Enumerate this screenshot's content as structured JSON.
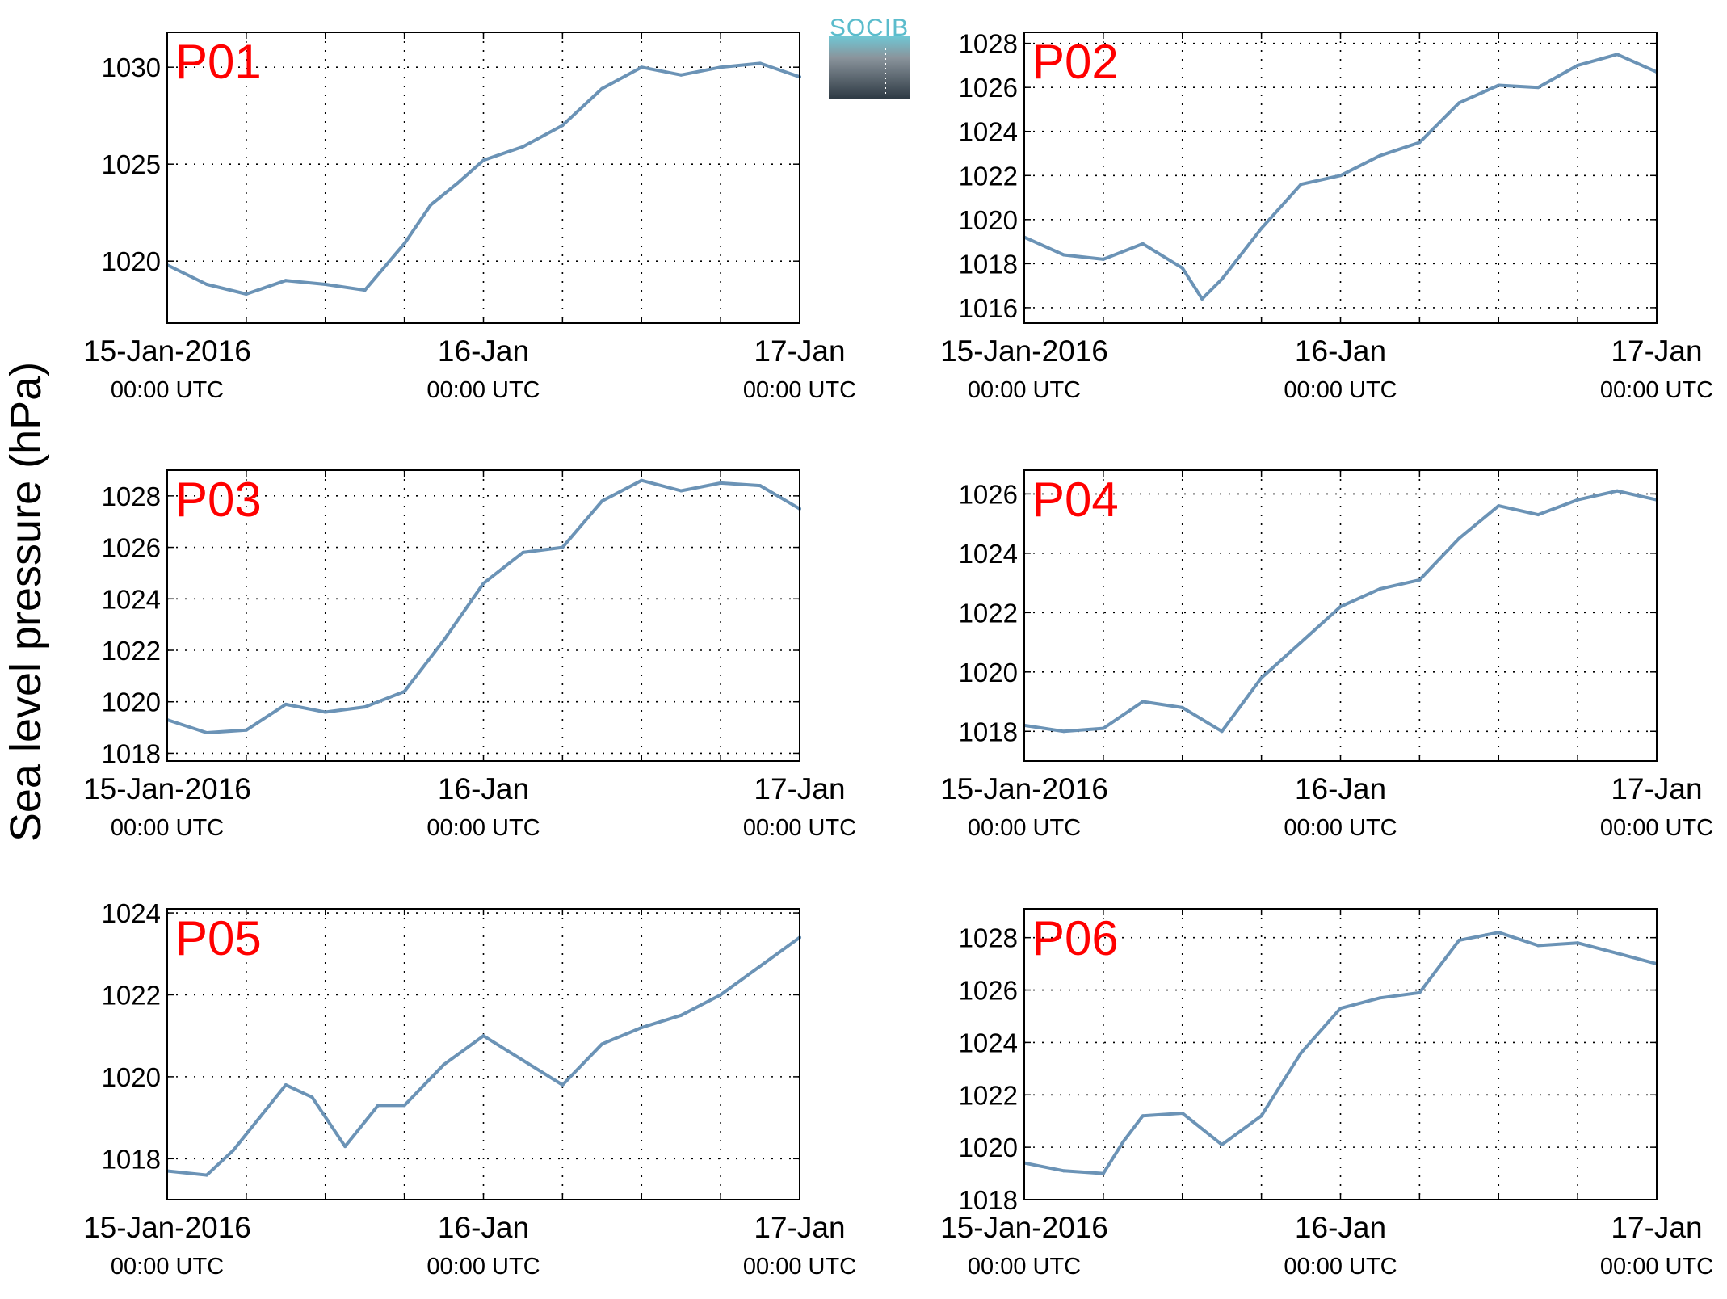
{
  "logo": {
    "text": "SOCIB"
  },
  "colors": {
    "line": "#6b93b6",
    "panel_label": "#ff0000",
    "grid": "#000000"
  },
  "chart_data": [
    {
      "type": "line",
      "title": "P01",
      "ylabel": "Sea level pressure (hPa)",
      "x_ticks": [
        {
          "line1": "15-Jan-2016",
          "line2": "00:00 UTC"
        },
        {
          "line1": "16-Jan",
          "line2": "00:00 UTC"
        },
        {
          "line1": "17-Jan",
          "line2": "00:00 UTC"
        }
      ],
      "xlim": [
        "2016-01-15 00:00",
        "2016-01-17 00:00"
      ],
      "ylim": [
        1016.8,
        1031.8
      ],
      "y_ticks": [
        1020,
        1025,
        1030
      ],
      "grid": true,
      "series": [
        {
          "x": [
            "2016-01-15 00:00",
            "2016-01-15 03:00",
            "2016-01-15 06:00",
            "2016-01-15 09:00",
            "2016-01-15 12:00",
            "2016-01-15 15:00",
            "2016-01-15 18:00",
            "2016-01-15 20:00",
            "2016-01-15 22:00",
            "2016-01-16 00:00",
            "2016-01-16 03:00",
            "2016-01-16 06:00",
            "2016-01-16 09:00",
            "2016-01-16 12:00",
            "2016-01-16 15:00",
            "2016-01-16 18:00",
            "2016-01-16 21:00",
            "2016-01-17 00:00"
          ],
          "values": [
            1019.8,
            1018.8,
            1018.3,
            1019.0,
            1018.8,
            1018.5,
            1020.9,
            1022.9,
            1024.0,
            1025.2,
            1025.9,
            1027.0,
            1028.9,
            1030.0,
            1029.6,
            1030.0,
            1030.2,
            1029.5
          ]
        }
      ]
    },
    {
      "type": "line",
      "title": "P02",
      "ylabel": "Sea level pressure (hPa)",
      "x_ticks": [
        {
          "line1": "15-Jan-2016",
          "line2": "00:00 UTC"
        },
        {
          "line1": "16-Jan",
          "line2": "00:00 UTC"
        },
        {
          "line1": "17-Jan",
          "line2": "00:00 UTC"
        }
      ],
      "xlim": [
        "2016-01-15 00:00",
        "2016-01-17 00:00"
      ],
      "ylim": [
        1015.3,
        1028.5
      ],
      "y_ticks": [
        1016,
        1018,
        1020,
        1022,
        1024,
        1026,
        1028
      ],
      "grid": true,
      "series": [
        {
          "x": [
            "2016-01-15 00:00",
            "2016-01-15 03:00",
            "2016-01-15 06:00",
            "2016-01-15 09:00",
            "2016-01-15 12:00",
            "2016-01-15 13:30",
            "2016-01-15 15:00",
            "2016-01-15 18:00",
            "2016-01-15 21:00",
            "2016-01-16 00:00",
            "2016-01-16 03:00",
            "2016-01-16 06:00",
            "2016-01-16 09:00",
            "2016-01-16 12:00",
            "2016-01-16 15:00",
            "2016-01-16 18:00",
            "2016-01-16 21:00",
            "2016-01-17 00:00"
          ],
          "values": [
            1019.2,
            1018.4,
            1018.2,
            1018.9,
            1017.8,
            1016.4,
            1017.3,
            1019.6,
            1021.6,
            1022.0,
            1022.9,
            1023.5,
            1025.3,
            1026.1,
            1026.0,
            1027.0,
            1027.5,
            1026.7
          ]
        }
      ]
    },
    {
      "type": "line",
      "title": "P03",
      "ylabel": "Sea level pressure (hPa)",
      "x_ticks": [
        {
          "line1": "15-Jan-2016",
          "line2": "00:00 UTC"
        },
        {
          "line1": "16-Jan",
          "line2": "00:00 UTC"
        },
        {
          "line1": "17-Jan",
          "line2": "00:00 UTC"
        }
      ],
      "xlim": [
        "2016-01-15 00:00",
        "2016-01-17 00:00"
      ],
      "ylim": [
        1017.7,
        1029.0
      ],
      "y_ticks": [
        1018,
        1020,
        1022,
        1024,
        1026,
        1028
      ],
      "grid": true,
      "series": [
        {
          "x": [
            "2016-01-15 00:00",
            "2016-01-15 03:00",
            "2016-01-15 06:00",
            "2016-01-15 09:00",
            "2016-01-15 12:00",
            "2016-01-15 15:00",
            "2016-01-15 18:00",
            "2016-01-15 21:00",
            "2016-01-16 00:00",
            "2016-01-16 03:00",
            "2016-01-16 06:00",
            "2016-01-16 09:00",
            "2016-01-16 12:00",
            "2016-01-16 15:00",
            "2016-01-16 18:00",
            "2016-01-16 21:00",
            "2016-01-17 00:00"
          ],
          "values": [
            1019.3,
            1018.8,
            1018.9,
            1019.9,
            1019.6,
            1019.8,
            1020.4,
            1022.4,
            1024.6,
            1025.8,
            1026.0,
            1027.8,
            1028.6,
            1028.2,
            1028.5,
            1028.4,
            1027.5
          ]
        }
      ]
    },
    {
      "type": "line",
      "title": "P04",
      "ylabel": "Sea level pressure (hPa)",
      "x_ticks": [
        {
          "line1": "15-Jan-2016",
          "line2": "00:00 UTC"
        },
        {
          "line1": "16-Jan",
          "line2": "00:00 UTC"
        },
        {
          "line1": "17-Jan",
          "line2": "00:00 UTC"
        }
      ],
      "xlim": [
        "2016-01-15 00:00",
        "2016-01-17 00:00"
      ],
      "ylim": [
        1017.0,
        1026.8
      ],
      "y_ticks": [
        1018,
        1020,
        1022,
        1024,
        1026
      ],
      "grid": true,
      "series": [
        {
          "x": [
            "2016-01-15 00:00",
            "2016-01-15 03:00",
            "2016-01-15 06:00",
            "2016-01-15 09:00",
            "2016-01-15 12:00",
            "2016-01-15 15:00",
            "2016-01-15 18:00",
            "2016-01-15 21:00",
            "2016-01-16 00:00",
            "2016-01-16 03:00",
            "2016-01-16 06:00",
            "2016-01-16 09:00",
            "2016-01-16 12:00",
            "2016-01-16 15:00",
            "2016-01-16 18:00",
            "2016-01-16 21:00",
            "2016-01-17 00:00"
          ],
          "values": [
            1018.2,
            1018.0,
            1018.1,
            1019.0,
            1018.8,
            1018.0,
            1019.8,
            1021.0,
            1022.2,
            1022.8,
            1023.1,
            1024.5,
            1025.6,
            1025.3,
            1025.8,
            1026.1,
            1025.8
          ]
        }
      ]
    },
    {
      "type": "line",
      "title": "P05",
      "ylabel": "Sea level pressure (hPa)",
      "x_ticks": [
        {
          "line1": "15-Jan-2016",
          "line2": "00:00 UTC"
        },
        {
          "line1": "16-Jan",
          "line2": "00:00 UTC"
        },
        {
          "line1": "17-Jan",
          "line2": "00:00 UTC"
        }
      ],
      "xlim": [
        "2016-01-15 00:00",
        "2016-01-17 00:00"
      ],
      "ylim": [
        1017.0,
        1024.1
      ],
      "y_ticks": [
        1018,
        1020,
        1022,
        1024
      ],
      "grid": true,
      "series": [
        {
          "x": [
            "2016-01-15 00:00",
            "2016-01-15 03:00",
            "2016-01-15 05:00",
            "2016-01-15 07:00",
            "2016-01-15 09:00",
            "2016-01-15 11:00",
            "2016-01-15 13:30",
            "2016-01-15 16:00",
            "2016-01-15 18:00",
            "2016-01-15 21:00",
            "2016-01-16 00:00",
            "2016-01-16 03:00",
            "2016-01-16 06:00",
            "2016-01-16 09:00",
            "2016-01-16 12:00",
            "2016-01-16 15:00",
            "2016-01-16 18:00",
            "2016-01-16 21:00",
            "2016-01-17 00:00"
          ],
          "values": [
            1017.7,
            1017.6,
            1018.2,
            1019.0,
            1019.8,
            1019.5,
            1018.3,
            1019.3,
            1019.3,
            1020.3,
            1021.0,
            1020.4,
            1019.8,
            1020.8,
            1021.2,
            1021.5,
            1022.0,
            1022.7,
            1023.4
          ]
        }
      ]
    },
    {
      "type": "line",
      "title": "P06",
      "ylabel": "Sea level pressure (hPa)",
      "x_ticks": [
        {
          "line1": "15-Jan-2016",
          "line2": "00:00 UTC"
        },
        {
          "line1": "16-Jan",
          "line2": "00:00 UTC"
        },
        {
          "line1": "17-Jan",
          "line2": "00:00 UTC"
        }
      ],
      "xlim": [
        "2016-01-15 00:00",
        "2016-01-17 00:00"
      ],
      "ylim": [
        1018.0,
        1029.1
      ],
      "y_ticks": [
        1018,
        1020,
        1022,
        1024,
        1026,
        1028
      ],
      "grid": true,
      "series": [
        {
          "x": [
            "2016-01-15 00:00",
            "2016-01-15 03:00",
            "2016-01-15 06:00",
            "2016-01-15 07:30",
            "2016-01-15 09:00",
            "2016-01-15 12:00",
            "2016-01-15 15:00",
            "2016-01-15 18:00",
            "2016-01-15 21:00",
            "2016-01-16 00:00",
            "2016-01-16 03:00",
            "2016-01-16 06:00",
            "2016-01-16 09:00",
            "2016-01-16 12:00",
            "2016-01-16 15:00",
            "2016-01-16 18:00",
            "2016-01-16 21:00",
            "2016-01-17 00:00"
          ],
          "values": [
            1019.4,
            1019.1,
            1019.0,
            1020.2,
            1021.2,
            1021.3,
            1020.1,
            1021.2,
            1023.6,
            1025.3,
            1025.7,
            1025.9,
            1027.9,
            1028.2,
            1027.7,
            1027.8,
            1027.4,
            1027.0
          ]
        }
      ]
    }
  ]
}
